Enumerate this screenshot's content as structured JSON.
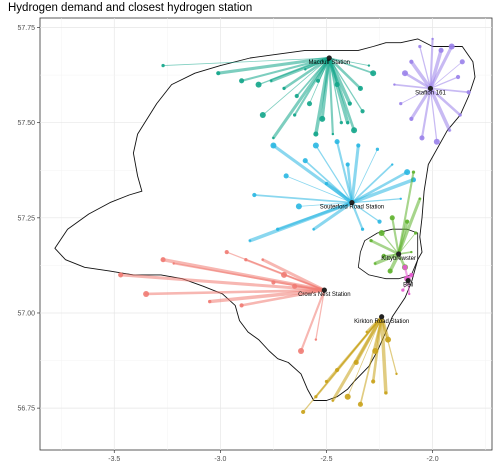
{
  "title": "Hydrogen demand and closest hydrogen station",
  "chart_data": {
    "type": "map",
    "xlim": [
      -3.85,
      -1.72
    ],
    "ylim": [
      56.64,
      57.775
    ],
    "x_ticks": [
      -3.5,
      -3.0,
      -2.5,
      -2.0
    ],
    "x_tick_labels": [
      "-3.5",
      "-3.0",
      "-2.5",
      "-2.0"
    ],
    "y_ticks": [
      56.75,
      57.0,
      57.25,
      57.5,
      57.75
    ],
    "y_tick_labels": [
      "56.75",
      "57.00",
      "57.25",
      "57.50",
      "57.75"
    ],
    "grid": true,
    "legend": "none",
    "region_outline": [
      [
        -3.41,
        57.42
      ],
      [
        -3.39,
        57.47
      ],
      [
        -3.3,
        57.55
      ],
      [
        -3.23,
        57.6
      ],
      [
        -3.12,
        57.63
      ],
      [
        -3.0,
        57.65
      ],
      [
        -2.86,
        57.67
      ],
      [
        -2.73,
        57.68
      ],
      [
        -2.6,
        57.69
      ],
      [
        -2.46,
        57.69
      ],
      [
        -2.35,
        57.69
      ],
      [
        -2.28,
        57.7
      ],
      [
        -2.22,
        57.71
      ],
      [
        -2.15,
        57.71
      ],
      [
        -2.07,
        57.72
      ],
      [
        -2.0,
        57.7
      ],
      [
        -1.94,
        57.7
      ],
      [
        -1.86,
        57.7
      ],
      [
        -1.81,
        57.66
      ],
      [
        -1.8,
        57.62
      ],
      [
        -1.83,
        57.57
      ],
      [
        -1.87,
        57.52
      ],
      [
        -1.93,
        57.48
      ],
      [
        -1.98,
        57.43
      ],
      [
        -2.02,
        57.39
      ],
      [
        -2.04,
        57.32
      ],
      [
        -2.05,
        57.25
      ],
      [
        -2.06,
        57.2
      ],
      [
        -2.05,
        57.16
      ],
      [
        -2.07,
        57.14
      ],
      [
        -2.1,
        57.08
      ],
      [
        -2.13,
        57.04
      ],
      [
        -2.19,
        56.99
      ],
      [
        -2.22,
        56.95
      ],
      [
        -2.26,
        56.9
      ],
      [
        -2.3,
        56.86
      ],
      [
        -2.37,
        56.82
      ],
      [
        -2.4,
        56.8
      ],
      [
        -2.45,
        56.78
      ],
      [
        -2.5,
        56.77
      ],
      [
        -2.56,
        56.77
      ],
      [
        -2.59,
        56.8
      ],
      [
        -2.62,
        56.84
      ],
      [
        -2.68,
        56.87
      ],
      [
        -2.73,
        56.88
      ],
      [
        -2.77,
        56.9
      ],
      [
        -2.82,
        56.93
      ],
      [
        -2.87,
        56.95
      ],
      [
        -2.91,
        56.98
      ],
      [
        -2.93,
        57.02
      ],
      [
        -2.99,
        57.05
      ],
      [
        -3.08,
        57.07
      ],
      [
        -3.18,
        57.09
      ],
      [
        -3.28,
        57.1
      ],
      [
        -3.41,
        57.1
      ],
      [
        -3.52,
        57.11
      ],
      [
        -3.64,
        57.12
      ],
      [
        -3.73,
        57.14
      ],
      [
        -3.78,
        57.17
      ],
      [
        -3.72,
        57.22
      ],
      [
        -3.62,
        57.26
      ],
      [
        -3.52,
        57.29
      ],
      [
        -3.43,
        57.31
      ],
      [
        -3.37,
        57.32
      ],
      [
        -3.39,
        57.36
      ],
      [
        -3.41,
        57.42
      ]
    ],
    "aberdeen_boundary": [
      [
        -2.34,
        57.16
      ],
      [
        -2.32,
        57.19
      ],
      [
        -2.26,
        57.21
      ],
      [
        -2.19,
        57.22
      ],
      [
        -2.12,
        57.22
      ],
      [
        -2.07,
        57.21
      ],
      [
        -2.07,
        57.14
      ],
      [
        -2.1,
        57.1
      ],
      [
        -2.16,
        57.09
      ],
      [
        -2.22,
        57.09
      ],
      [
        -2.3,
        57.1
      ],
      [
        -2.35,
        57.12
      ],
      [
        -2.34,
        57.16
      ]
    ],
    "stations": [
      {
        "name": "Macduff Station",
        "lon": -2.487,
        "lat": 57.67,
        "color": "#12a58a",
        "demand_points": [
          [
            -2.3,
            57.65
          ],
          [
            -2.28,
            57.63
          ],
          [
            -2.34,
            57.59
          ],
          [
            -2.39,
            57.55
          ],
          [
            -2.43,
            57.5
          ],
          [
            -2.47,
            57.47
          ],
          [
            -2.52,
            57.51
          ],
          [
            -2.58,
            57.55
          ],
          [
            -2.64,
            57.57
          ],
          [
            -2.7,
            57.59
          ],
          [
            -2.76,
            57.61
          ],
          [
            -2.82,
            57.6
          ],
          [
            -2.9,
            57.61
          ],
          [
            -3.01,
            57.63
          ],
          [
            -3.27,
            57.65
          ],
          [
            -2.6,
            57.64
          ],
          [
            -2.37,
            57.48
          ],
          [
            -2.55,
            57.47
          ],
          [
            -2.33,
            57.53
          ],
          [
            -2.65,
            57.52
          ],
          [
            -2.75,
            57.46
          ],
          [
            -2.8,
            57.52
          ],
          [
            -2.45,
            57.6
          ],
          [
            -2.54,
            57.61
          ],
          [
            -2.4,
            57.5
          ]
        ]
      },
      {
        "name": "Stafton 161",
        "lon": -2.01,
        "lat": 57.59,
        "color": "#9a82ea",
        "demand_points": [
          [
            -2.1,
            57.66
          ],
          [
            -2.06,
            57.7
          ],
          [
            -2.0,
            57.72
          ],
          [
            -1.91,
            57.7
          ],
          [
            -1.86,
            57.66
          ],
          [
            -1.83,
            57.58
          ],
          [
            -1.87,
            57.52
          ],
          [
            -1.92,
            57.48
          ],
          [
            -1.98,
            57.45
          ],
          [
            -2.05,
            57.46
          ],
          [
            -2.1,
            57.51
          ],
          [
            -2.15,
            57.55
          ],
          [
            -2.18,
            57.6
          ],
          [
            -2.13,
            57.63
          ],
          [
            -1.96,
            57.69
          ],
          [
            -1.88,
            57.62
          ]
        ]
      },
      {
        "name": "Souterford Road Station",
        "lon": -2.38,
        "lat": 57.29,
        "color": "#29b7e2",
        "demand_points": [
          [
            -2.75,
            57.44
          ],
          [
            -2.69,
            57.36
          ],
          [
            -2.84,
            57.31
          ],
          [
            -2.73,
            57.22
          ],
          [
            -2.86,
            57.19
          ],
          [
            -2.55,
            57.44
          ],
          [
            -2.45,
            57.45
          ],
          [
            -2.35,
            57.44
          ],
          [
            -2.26,
            57.43
          ],
          [
            -2.19,
            57.39
          ],
          [
            -2.12,
            57.37
          ],
          [
            -2.09,
            57.35
          ],
          [
            -2.25,
            57.24
          ],
          [
            -2.33,
            57.22
          ],
          [
            -2.56,
            57.22
          ],
          [
            -2.63,
            57.28
          ],
          [
            -2.6,
            57.4
          ],
          [
            -2.4,
            57.39
          ],
          [
            -2.5,
            57.34
          ],
          [
            -2.15,
            57.3
          ]
        ]
      },
      {
        "name": "Kittybrewster",
        "lon": -2.16,
        "lat": 57.155,
        "color": "#5fb32d",
        "demand_points": [
          [
            -2.29,
            57.19
          ],
          [
            -2.27,
            57.13
          ],
          [
            -2.24,
            57.21
          ],
          [
            -2.19,
            57.25
          ],
          [
            -2.12,
            57.24
          ],
          [
            -2.08,
            57.21
          ],
          [
            -2.1,
            57.16
          ],
          [
            -2.13,
            57.12
          ],
          [
            -2.2,
            57.11
          ],
          [
            -2.23,
            57.15
          ],
          [
            -2.09,
            57.37
          ],
          [
            -2.06,
            57.3
          ]
        ]
      },
      {
        "name": "Bell",
        "lon": -2.115,
        "lat": 57.085,
        "color": "#e55ad0",
        "demand_points": [
          [
            -2.13,
            57.12
          ],
          [
            -2.1,
            57.1
          ],
          [
            -2.14,
            57.06
          ],
          [
            -2.11,
            57.05
          ],
          [
            -2.12,
            57.09
          ]
        ]
      },
      {
        "name": "Crow's Nest Station",
        "lon": -2.51,
        "lat": 57.06,
        "color": "#f07b73",
        "demand_points": [
          [
            -3.22,
            57.13
          ],
          [
            -3.35,
            57.05
          ],
          [
            -3.27,
            57.14
          ],
          [
            -2.97,
            57.16
          ],
          [
            -2.88,
            57.14
          ],
          [
            -2.8,
            57.14
          ],
          [
            -2.7,
            57.1
          ],
          [
            -2.65,
            57.07
          ],
          [
            -2.9,
            57.02
          ],
          [
            -3.05,
            57.03
          ],
          [
            -2.55,
            56.93
          ],
          [
            -2.62,
            56.9
          ],
          [
            -3.47,
            57.1
          ],
          [
            -2.75,
            57.08
          ]
        ]
      },
      {
        "name": "Kirkton Road Station",
        "lon": -2.24,
        "lat": 56.99,
        "color": "#c9a21a",
        "demand_points": [
          [
            -2.61,
            56.74
          ],
          [
            -2.55,
            56.78
          ],
          [
            -2.47,
            56.77
          ],
          [
            -2.4,
            56.78
          ],
          [
            -2.34,
            56.76
          ],
          [
            -2.28,
            56.82
          ],
          [
            -2.22,
            56.79
          ],
          [
            -2.17,
            56.84
          ],
          [
            -2.27,
            56.9
          ],
          [
            -2.36,
            56.87
          ],
          [
            -2.45,
            56.85
          ],
          [
            -2.5,
            56.82
          ],
          [
            -2.31,
            56.95
          ],
          [
            -2.21,
            56.93
          ]
        ]
      }
    ]
  }
}
